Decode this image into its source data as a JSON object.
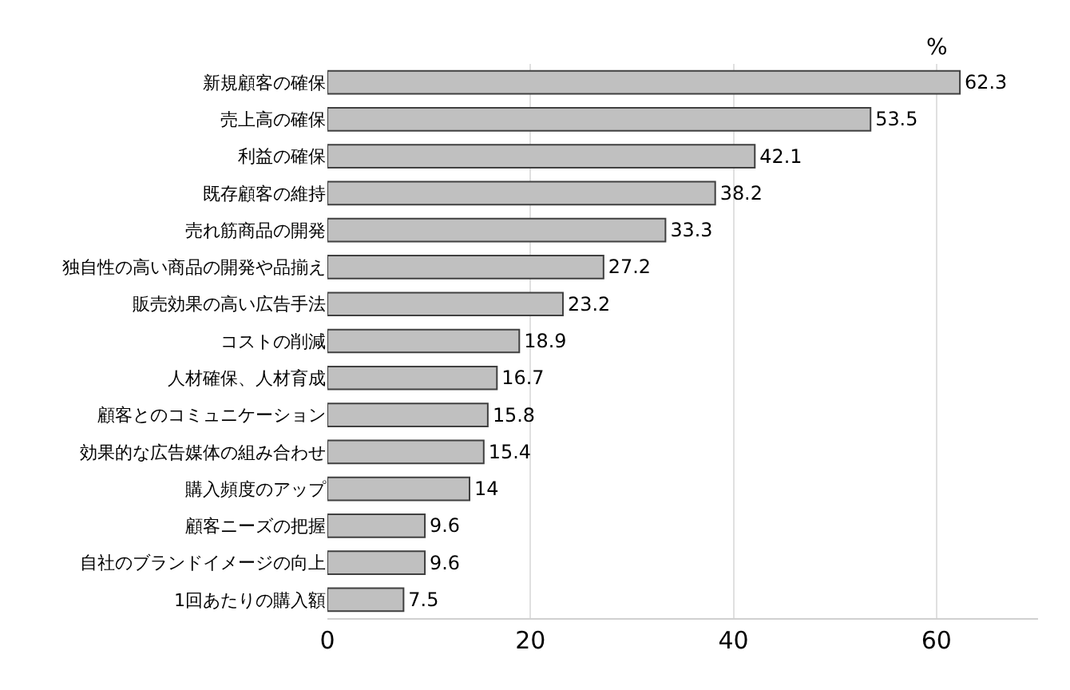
{
  "chart_data": {
    "type": "bar",
    "orientation": "horizontal",
    "xlabel": "%",
    "categories": [
      "新規顧客の確保",
      "売上高の確保",
      "利益の確保",
      "既存顧客の維持",
      "売れ筋商品の開発",
      "独自性の高い商品の開発や品揃え",
      "販売効果の高い広告手法",
      "コストの削減",
      "人材確保、人材育成",
      "顧客とのコミュニケーション",
      "効果的な広告媒体の組み合わせ",
      "購入頻度のアップ",
      "顧客ニーズの把握",
      "自社のブランドイメージの向上",
      "1回あたりの購入額"
    ],
    "values": [
      62.3,
      53.5,
      42.1,
      38.2,
      33.3,
      27.2,
      23.2,
      18.9,
      16.7,
      15.8,
      15.4,
      14,
      9.6,
      9.6,
      7.5
    ],
    "color": "#c0c0c0",
    "data_labels": true,
    "xlim": [
      0,
      70
    ],
    "xticks": [
      0,
      20,
      40,
      60
    ],
    "grid": "x"
  }
}
